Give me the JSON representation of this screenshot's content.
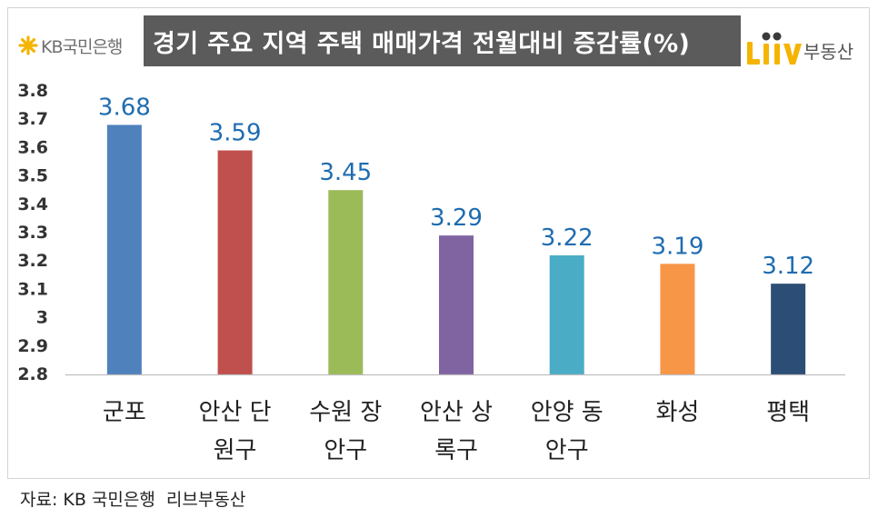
{
  "header": {
    "kb_logo_text": "KB국민은행",
    "liiv_logo": "Liiv",
    "liiv_logo_suffix": "부동산"
  },
  "source_note": "자료: KB 국민은행  리브부동산",
  "colors": {
    "title_background": "#5B5B5B",
    "title_text": "#FFFFFF",
    "data_label": "#1F6CB0",
    "kb_logo": "#F5B400",
    "liiv_logo": "#F5B400",
    "liiv_dots": "#3A3A3A",
    "axis_line": "#BFBFBF"
  },
  "icons": {
    "kb_logo_icon": "kb-star-icon",
    "liiv_logo_icon": "liiv-logo-icon"
  },
  "chart_data": {
    "type": "bar",
    "title": "경기 주요 지역 주택 매매가격 전월대비 증감률(%)",
    "categories": [
      "군포",
      "안산 단원구",
      "수원 장안구",
      "안산 상록구",
      "안양 동안구",
      "화성",
      "평택"
    ],
    "values": [
      3.68,
      3.59,
      3.45,
      3.29,
      3.22,
      3.19,
      3.12
    ],
    "bar_colors": [
      "#4F81BD",
      "#C0504D",
      "#9BBB59",
      "#8064A2",
      "#4BACC6",
      "#F79646",
      "#2C4D75"
    ],
    "ylim": [
      2.8,
      3.8
    ],
    "yticks": [
      3.8,
      3.7,
      3.6,
      3.5,
      3.4,
      3.3,
      3.2,
      3.1,
      3,
      2.9,
      2.8
    ],
    "data_labels": true,
    "grid": false
  }
}
